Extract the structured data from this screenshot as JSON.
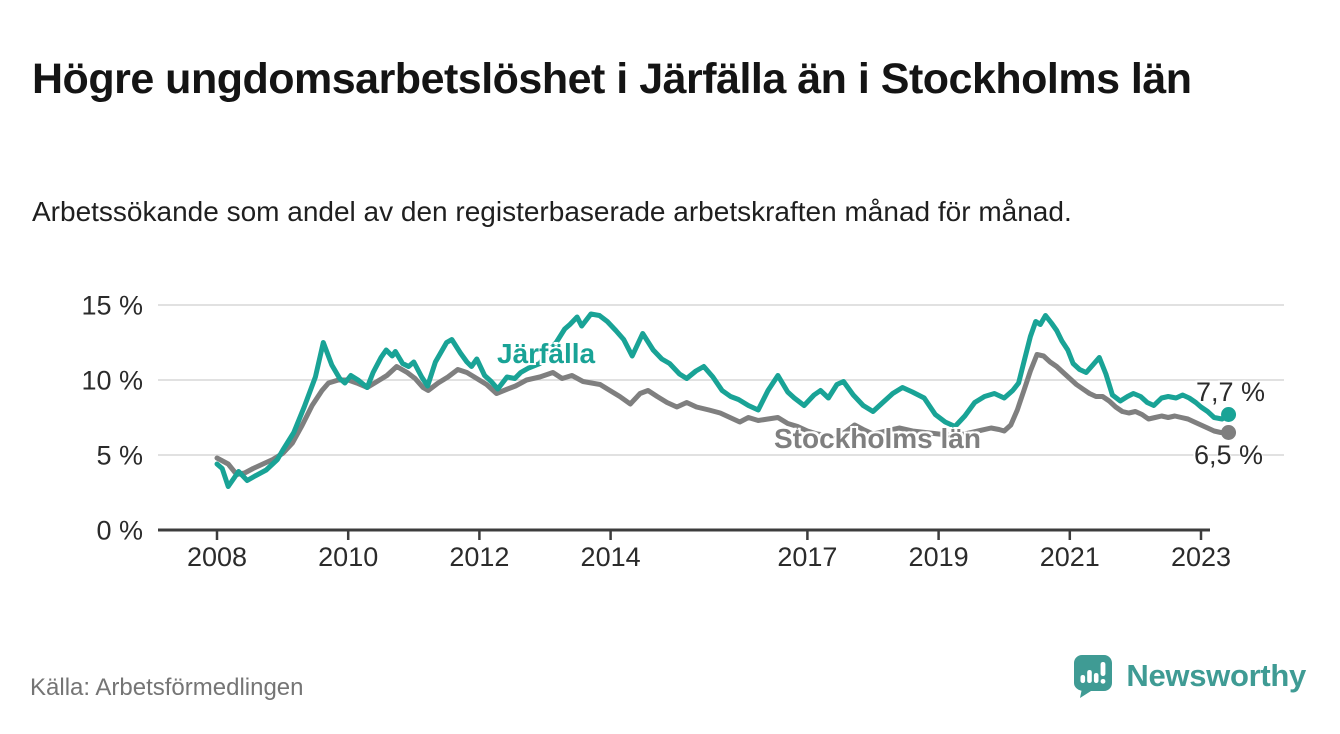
{
  "header": {
    "title": "Högre ungdomsarbetslöshet i Järfälla än i Stockholms län",
    "subtitle": "Arbetssökande som andel av den registerbaserade arbetskraften månad för månad."
  },
  "footer": {
    "source": "Källa: Arbetsförmedlingen",
    "brand": "Newsworthy",
    "logo_icon": "bar-chart-speech-bubble-icon"
  },
  "colors": {
    "jarfalla": "#19a396",
    "stockholm": "#7f7f7f",
    "gridline": "#d7d7d7",
    "axis": "#3c3c3c",
    "tick_label": "#2b2b2b",
    "logo_teal": "#3f9b94",
    "background": "#ffffff"
  },
  "chart_data": {
    "type": "line",
    "unit": "%",
    "grid": true,
    "legend_position": "inline-labels",
    "x_axis": {
      "range": [
        2007.85,
        2023.6
      ],
      "ticks": [
        {
          "year": 2008,
          "label": "2008"
        },
        {
          "year": 2010,
          "label": "2010"
        },
        {
          "year": 2012,
          "label": "2012"
        },
        {
          "year": 2014,
          "label": "2014"
        },
        {
          "year": 2017,
          "label": "2017"
        },
        {
          "year": 2019,
          "label": "2019"
        },
        {
          "year": 2021,
          "label": "2021"
        },
        {
          "year": 2023,
          "label": "2023"
        }
      ]
    },
    "y_axis": {
      "range": [
        0,
        15
      ],
      "ticks": [
        {
          "value": 0,
          "label": "0 %"
        },
        {
          "value": 5,
          "label": "5 %"
        },
        {
          "value": 10,
          "label": "10 %"
        },
        {
          "value": 15,
          "label": "15 %"
        }
      ]
    },
    "series": [
      {
        "name": "Stockholms län",
        "color": "#7f7f7f",
        "end_label": "6,5 %",
        "end_value": 6.5,
        "points": [
          [
            2008.0,
            4.8
          ],
          [
            2008.17,
            4.4
          ],
          [
            2008.3,
            3.7
          ],
          [
            2008.42,
            3.8
          ],
          [
            2008.55,
            4.1
          ],
          [
            2008.7,
            4.4
          ],
          [
            2008.85,
            4.7
          ],
          [
            2009.0,
            5.1
          ],
          [
            2009.15,
            5.8
          ],
          [
            2009.3,
            7.0
          ],
          [
            2009.45,
            8.3
          ],
          [
            2009.6,
            9.3
          ],
          [
            2009.7,
            9.8
          ],
          [
            2009.85,
            10.0
          ],
          [
            2010.0,
            10.0
          ],
          [
            2010.13,
            9.8
          ],
          [
            2010.29,
            9.5
          ],
          [
            2010.44,
            9.9
          ],
          [
            2010.59,
            10.3
          ],
          [
            2010.74,
            10.9
          ],
          [
            2010.9,
            10.5
          ],
          [
            2011.02,
            10.1
          ],
          [
            2011.14,
            9.5
          ],
          [
            2011.22,
            9.3
          ],
          [
            2011.37,
            9.8
          ],
          [
            2011.52,
            10.2
          ],
          [
            2011.67,
            10.7
          ],
          [
            2011.81,
            10.5
          ],
          [
            2011.96,
            10.1
          ],
          [
            2012.11,
            9.7
          ],
          [
            2012.26,
            9.1
          ],
          [
            2012.43,
            9.4
          ],
          [
            2012.55,
            9.6
          ],
          [
            2012.72,
            10.0
          ],
          [
            2012.92,
            10.2
          ],
          [
            2013.12,
            10.5
          ],
          [
            2013.26,
            10.1
          ],
          [
            2013.41,
            10.3
          ],
          [
            2013.58,
            9.9
          ],
          [
            2013.84,
            9.7
          ],
          [
            2013.99,
            9.3
          ],
          [
            2014.14,
            8.9
          ],
          [
            2014.3,
            8.4
          ],
          [
            2014.45,
            9.1
          ],
          [
            2014.57,
            9.3
          ],
          [
            2014.71,
            8.9
          ],
          [
            2014.86,
            8.5
          ],
          [
            2015.01,
            8.2
          ],
          [
            2015.16,
            8.5
          ],
          [
            2015.31,
            8.2
          ],
          [
            2015.5,
            8.0
          ],
          [
            2015.67,
            7.8
          ],
          [
            2015.82,
            7.5
          ],
          [
            2015.97,
            7.2
          ],
          [
            2016.1,
            7.5
          ],
          [
            2016.25,
            7.3
          ],
          [
            2016.4,
            7.4
          ],
          [
            2016.55,
            7.5
          ],
          [
            2016.7,
            7.1
          ],
          [
            2016.85,
            6.9
          ],
          [
            2017.0,
            6.6
          ],
          [
            2017.15,
            6.4
          ],
          [
            2017.3,
            6.3
          ],
          [
            2017.45,
            6.2
          ],
          [
            2017.6,
            6.6
          ],
          [
            2017.72,
            7.0
          ],
          [
            2017.85,
            6.7
          ],
          [
            2018.0,
            6.4
          ],
          [
            2018.2,
            6.6
          ],
          [
            2018.4,
            6.8
          ],
          [
            2018.6,
            6.6
          ],
          [
            2018.8,
            6.5
          ],
          [
            2019.0,
            6.4
          ],
          [
            2019.2,
            6.3
          ],
          [
            2019.4,
            6.4
          ],
          [
            2019.6,
            6.6
          ],
          [
            2019.8,
            6.8
          ],
          [
            2019.92,
            6.7
          ],
          [
            2020.0,
            6.6
          ],
          [
            2020.1,
            7.0
          ],
          [
            2020.2,
            8.0
          ],
          [
            2020.3,
            9.3
          ],
          [
            2020.4,
            10.6
          ],
          [
            2020.5,
            11.7
          ],
          [
            2020.6,
            11.6
          ],
          [
            2020.7,
            11.2
          ],
          [
            2020.8,
            10.9
          ],
          [
            2020.9,
            10.5
          ],
          [
            2021.0,
            10.1
          ],
          [
            2021.1,
            9.7
          ],
          [
            2021.2,
            9.4
          ],
          [
            2021.3,
            9.1
          ],
          [
            2021.4,
            8.9
          ],
          [
            2021.5,
            8.9
          ],
          [
            2021.6,
            8.6
          ],
          [
            2021.7,
            8.2
          ],
          [
            2021.8,
            7.9
          ],
          [
            2021.9,
            7.8
          ],
          [
            2022.0,
            7.9
          ],
          [
            2022.1,
            7.7
          ],
          [
            2022.2,
            7.4
          ],
          [
            2022.3,
            7.5
          ],
          [
            2022.4,
            7.6
          ],
          [
            2022.5,
            7.5
          ],
          [
            2022.6,
            7.6
          ],
          [
            2022.7,
            7.5
          ],
          [
            2022.8,
            7.4
          ],
          [
            2022.9,
            7.2
          ],
          [
            2023.0,
            7.0
          ],
          [
            2023.1,
            6.8
          ],
          [
            2023.2,
            6.6
          ],
          [
            2023.3,
            6.5
          ],
          [
            2023.42,
            6.5
          ]
        ]
      },
      {
        "name": "Järfälla",
        "color": "#19a396",
        "end_label": "7,7 %",
        "end_value": 7.7,
        "points": [
          [
            2008.0,
            4.4
          ],
          [
            2008.08,
            4.1
          ],
          [
            2008.17,
            2.9
          ],
          [
            2008.33,
            3.9
          ],
          [
            2008.46,
            3.3
          ],
          [
            2008.58,
            3.6
          ],
          [
            2008.75,
            4.0
          ],
          [
            2008.92,
            4.7
          ],
          [
            2009.0,
            5.3
          ],
          [
            2009.17,
            6.5
          ],
          [
            2009.33,
            8.2
          ],
          [
            2009.5,
            10.2
          ],
          [
            2009.62,
            12.5
          ],
          [
            2009.75,
            11.0
          ],
          [
            2009.87,
            10.1
          ],
          [
            2009.95,
            9.8
          ],
          [
            2010.04,
            10.3
          ],
          [
            2010.15,
            10.0
          ],
          [
            2010.29,
            9.5
          ],
          [
            2010.38,
            10.5
          ],
          [
            2010.5,
            11.5
          ],
          [
            2010.58,
            12.0
          ],
          [
            2010.67,
            11.6
          ],
          [
            2010.72,
            11.9
          ],
          [
            2010.83,
            11.1
          ],
          [
            2010.92,
            10.9
          ],
          [
            2011.0,
            11.2
          ],
          [
            2011.12,
            10.2
          ],
          [
            2011.21,
            9.6
          ],
          [
            2011.33,
            11.2
          ],
          [
            2011.5,
            12.5
          ],
          [
            2011.58,
            12.7
          ],
          [
            2011.71,
            11.8
          ],
          [
            2011.81,
            11.2
          ],
          [
            2011.88,
            10.9
          ],
          [
            2011.96,
            11.4
          ],
          [
            2012.08,
            10.3
          ],
          [
            2012.18,
            9.9
          ],
          [
            2012.28,
            9.4
          ],
          [
            2012.42,
            10.2
          ],
          [
            2012.54,
            10.1
          ],
          [
            2012.63,
            10.5
          ],
          [
            2012.75,
            10.8
          ],
          [
            2012.92,
            11.1
          ],
          [
            2013.04,
            11.9
          ],
          [
            2013.17,
            12.5
          ],
          [
            2013.3,
            13.4
          ],
          [
            2013.38,
            13.7
          ],
          [
            2013.49,
            14.2
          ],
          [
            2013.56,
            13.6
          ],
          [
            2013.7,
            14.4
          ],
          [
            2013.83,
            14.3
          ],
          [
            2013.95,
            13.9
          ],
          [
            2014.08,
            13.3
          ],
          [
            2014.2,
            12.7
          ],
          [
            2014.33,
            11.6
          ],
          [
            2014.49,
            13.1
          ],
          [
            2014.65,
            12.0
          ],
          [
            2014.78,
            11.4
          ],
          [
            2014.9,
            11.1
          ],
          [
            2015.05,
            10.4
          ],
          [
            2015.16,
            10.1
          ],
          [
            2015.3,
            10.6
          ],
          [
            2015.42,
            10.9
          ],
          [
            2015.56,
            10.2
          ],
          [
            2015.7,
            9.3
          ],
          [
            2015.83,
            8.9
          ],
          [
            2015.95,
            8.7
          ],
          [
            2016.1,
            8.3
          ],
          [
            2016.25,
            8.0
          ],
          [
            2016.4,
            9.3
          ],
          [
            2016.55,
            10.3
          ],
          [
            2016.7,
            9.2
          ],
          [
            2016.8,
            8.8
          ],
          [
            2016.95,
            8.3
          ],
          [
            2017.1,
            9.0
          ],
          [
            2017.2,
            9.3
          ],
          [
            2017.32,
            8.8
          ],
          [
            2017.45,
            9.7
          ],
          [
            2017.55,
            9.9
          ],
          [
            2017.7,
            9.0
          ],
          [
            2017.85,
            8.3
          ],
          [
            2018.0,
            7.9
          ],
          [
            2018.15,
            8.5
          ],
          [
            2018.3,
            9.1
          ],
          [
            2018.45,
            9.5
          ],
          [
            2018.6,
            9.2
          ],
          [
            2018.78,
            8.8
          ],
          [
            2018.95,
            7.7
          ],
          [
            2019.1,
            7.2
          ],
          [
            2019.25,
            6.9
          ],
          [
            2019.4,
            7.6
          ],
          [
            2019.55,
            8.5
          ],
          [
            2019.7,
            8.9
          ],
          [
            2019.85,
            9.1
          ],
          [
            2020.0,
            8.8
          ],
          [
            2020.13,
            9.3
          ],
          [
            2020.22,
            9.8
          ],
          [
            2020.3,
            11.2
          ],
          [
            2020.4,
            12.9
          ],
          [
            2020.48,
            13.9
          ],
          [
            2020.55,
            13.7
          ],
          [
            2020.63,
            14.3
          ],
          [
            2020.72,
            13.8
          ],
          [
            2020.8,
            13.3
          ],
          [
            2020.88,
            12.6
          ],
          [
            2020.97,
            12.0
          ],
          [
            2021.05,
            11.1
          ],
          [
            2021.15,
            10.7
          ],
          [
            2021.25,
            10.5
          ],
          [
            2021.35,
            11.0
          ],
          [
            2021.45,
            11.5
          ],
          [
            2021.55,
            10.4
          ],
          [
            2021.65,
            9.0
          ],
          [
            2021.77,
            8.6
          ],
          [
            2021.88,
            8.9
          ],
          [
            2021.97,
            9.1
          ],
          [
            2022.08,
            8.9
          ],
          [
            2022.18,
            8.5
          ],
          [
            2022.28,
            8.3
          ],
          [
            2022.4,
            8.8
          ],
          [
            2022.5,
            8.9
          ],
          [
            2022.62,
            8.8
          ],
          [
            2022.72,
            9.0
          ],
          [
            2022.82,
            8.8
          ],
          [
            2022.92,
            8.5
          ],
          [
            2023.0,
            8.2
          ],
          [
            2023.1,
            7.9
          ],
          [
            2023.2,
            7.5
          ],
          [
            2023.32,
            7.4
          ],
          [
            2023.42,
            7.7
          ]
        ]
      }
    ]
  }
}
